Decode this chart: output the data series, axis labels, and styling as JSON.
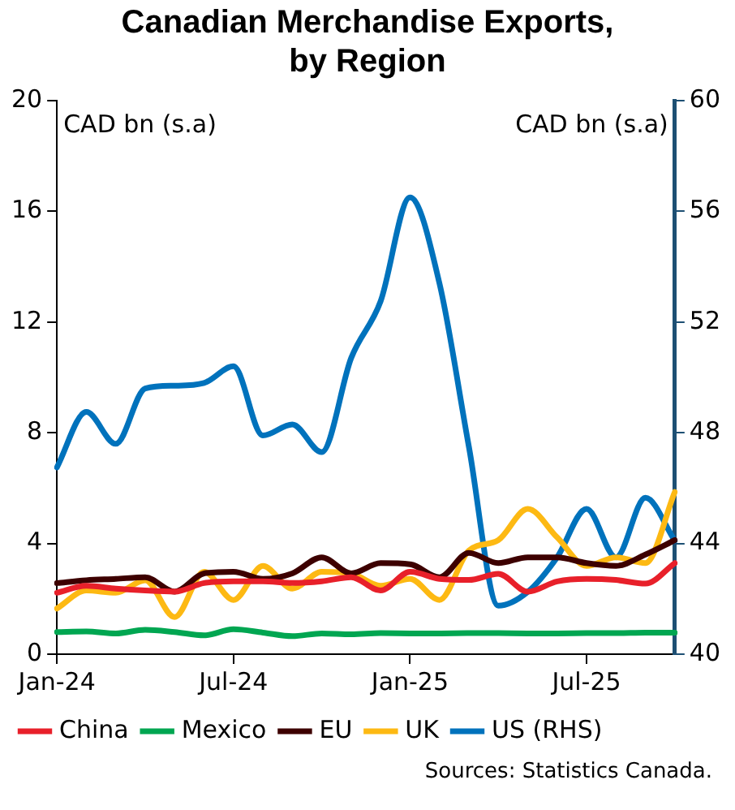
{
  "chart_data": {
    "type": "line",
    "title": "Canadian Merchandise Exports, by Region",
    "ylabel": "CAD bn (s.a)",
    "y2label": "CAD bn (s.a)",
    "categories": [
      "Jan-24",
      null,
      null,
      null,
      null,
      null,
      "Jul-24",
      null,
      null,
      null,
      null,
      null,
      "Jan-25",
      null,
      null,
      null,
      null,
      null,
      "Jul-25",
      null,
      null,
      null
    ],
    "series": [
      {
        "name": "China",
        "color": "#e8202a",
        "values": [
          2.22,
          2.47,
          2.37,
          2.3,
          2.26,
          2.57,
          2.63,
          2.63,
          2.57,
          2.63,
          2.78,
          2.3,
          2.98,
          2.72,
          2.68,
          2.9,
          2.26,
          2.63,
          2.72,
          2.68,
          2.55,
          3.29
        ]
      },
      {
        "name": "Mexico",
        "color": "#00a651",
        "values": [
          0.8,
          0.82,
          0.75,
          0.88,
          0.8,
          0.68,
          0.9,
          0.78,
          0.65,
          0.75,
          0.72,
          0.76,
          0.75,
          0.75,
          0.76,
          0.76,
          0.75,
          0.75,
          0.76,
          0.76,
          0.78,
          0.78
        ]
      },
      {
        "name": "EU",
        "color": "#3d0000",
        "values": [
          2.57,
          2.67,
          2.72,
          2.78,
          2.26,
          2.92,
          2.98,
          2.72,
          2.92,
          3.5,
          2.92,
          3.29,
          3.25,
          2.78,
          3.66,
          3.29,
          3.5,
          3.5,
          3.29,
          3.19,
          3.6,
          4.12
        ]
      },
      {
        "name": "UK",
        "color": "#fdb913",
        "values": [
          1.65,
          2.3,
          2.22,
          2.67,
          1.34,
          2.98,
          1.96,
          3.19,
          2.37,
          2.98,
          2.92,
          2.47,
          2.72,
          1.96,
          3.74,
          4.12,
          5.25,
          4.22,
          3.19,
          3.5,
          3.29,
          5.86
        ]
      },
      {
        "name": "US (RHS)",
        "color": "#0072bc",
        "axis": "y2",
        "values": [
          46.75,
          48.75,
          47.6,
          49.6,
          49.7,
          49.8,
          50.4,
          47.9,
          48.3,
          47.3,
          50.7,
          52.75,
          56.5,
          53.4,
          47.5,
          41.75,
          42.25,
          43.5,
          45.25,
          43.5,
          45.65,
          44.1
        ]
      }
    ],
    "ylim": [
      0,
      20
    ],
    "yticks": [
      0,
      4,
      8,
      12,
      16,
      20
    ],
    "y2lim": [
      40,
      60
    ],
    "y2ticks": [
      40,
      44,
      48,
      52,
      56,
      60
    ],
    "grid": false,
    "legend": "bottom",
    "line_style": "solid",
    "marker": "none",
    "annotations": [
      "Sources: Statistics Canada."
    ]
  }
}
